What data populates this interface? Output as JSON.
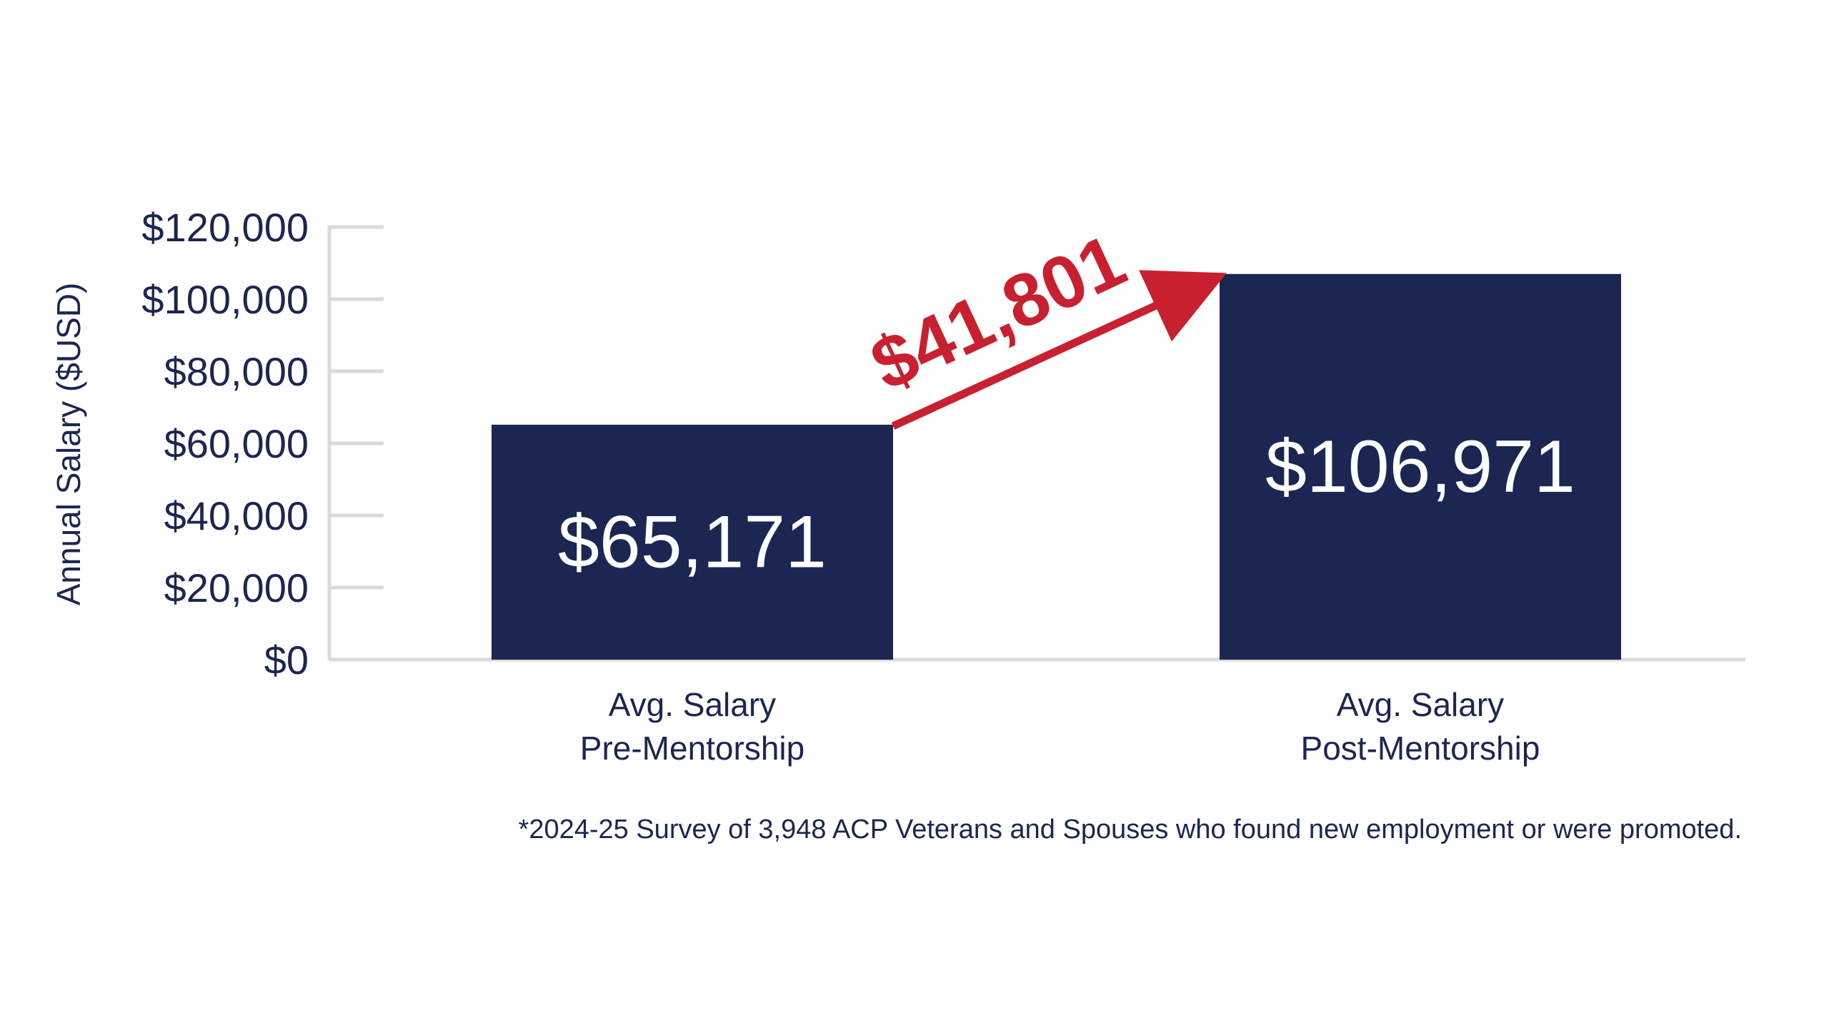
{
  "colors": {
    "bar": "#1b2652",
    "text": "#1b2652",
    "axis": "#d9d9d9",
    "accent": "#c8202f",
    "bar_label": "#ffffff"
  },
  "chart_data": {
    "type": "bar",
    "categories": [
      [
        "Avg. Salary",
        "Pre-Mentorship"
      ],
      [
        "Avg. Salary",
        "Post-Mentorship"
      ]
    ],
    "values": [
      65171,
      106971
    ],
    "data_labels": [
      "$65,171",
      "$106,971"
    ],
    "ylabel": "Annual Salary ($USD)",
    "ylim": [
      0,
      120000
    ],
    "yticks": [
      0,
      20000,
      40000,
      60000,
      80000,
      100000,
      120000
    ],
    "ytick_labels": [
      "$0",
      "$20,000",
      "$40,000",
      "$60,000",
      "$80,000",
      "$100,000",
      "$120,000"
    ],
    "annotation": {
      "text": "$41,801",
      "value": 41801,
      "from_category": 0,
      "to_category": 1
    },
    "grid": false,
    "legend": "none"
  },
  "footnote": "*2024-25 Survey of 3,948 ACP Veterans and Spouses who found new employment or were promoted."
}
